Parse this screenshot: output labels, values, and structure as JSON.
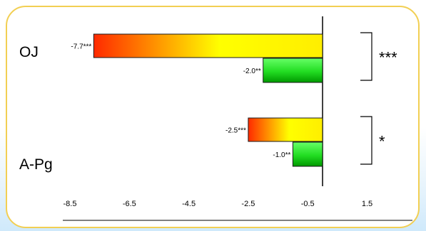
{
  "chart_data": {
    "type": "bar",
    "orientation": "horizontal",
    "title": "",
    "xlabel": "",
    "ylabel": "",
    "categories": [
      "OJ",
      "A-Pg"
    ],
    "series": [
      {
        "values": [
          -7.7,
          -2.5
        ],
        "labels": [
          "-7.7***",
          "-2.5***"
        ],
        "fill": "gradient-red-yellow"
      },
      {
        "values": [
          -2.0,
          -1.0
        ],
        "labels": [
          "-2.0**",
          "-1.0**"
        ],
        "fill": "gradient-green"
      }
    ],
    "significance": [
      "***",
      "*"
    ],
    "xlim": [
      -8.5,
      3
    ],
    "xticks": [
      -8.5,
      -6.5,
      -4.5,
      -2.5,
      -0.5,
      1.5
    ],
    "colors": {
      "red": "#ff2a00",
      "yellow": "#ffff00",
      "green_light": "#4dff4d",
      "green_dark": "#00b000",
      "frame": "#f2cf53"
    }
  }
}
